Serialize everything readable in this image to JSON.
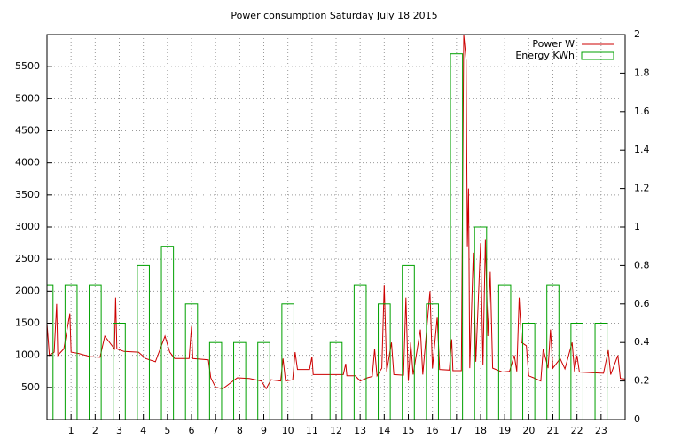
{
  "chart_data": {
    "type": "line-bar",
    "title": "Power consumption Saturday July 18 2015",
    "xlim": [
      0,
      24
    ],
    "xticks": [
      1,
      2,
      3,
      4,
      5,
      6,
      7,
      8,
      9,
      10,
      11,
      12,
      13,
      14,
      15,
      16,
      17,
      18,
      19,
      20,
      21,
      22,
      23
    ],
    "ylim": [
      0,
      6000
    ],
    "yticks": [
      500,
      1000,
      1500,
      2000,
      2500,
      3000,
      3500,
      4000,
      4500,
      5000,
      5500
    ],
    "y2lim": [
      0,
      2
    ],
    "y2ticks": [
      0,
      0.2,
      0.4,
      0.6,
      0.8,
      1,
      1.2,
      1.4,
      1.6,
      1.8,
      2
    ],
    "grid": true,
    "legend": "top-right",
    "series": [
      {
        "name": "Power W",
        "color": "#cc0000",
        "kind": "line",
        "x": [
          0,
          0.1,
          0.3,
          0.4,
          0.45,
          0.7,
          0.95,
          1,
          1.3,
          1.8,
          2.2,
          2.4,
          2.8,
          2.85,
          2.9,
          3.2,
          3.8,
          4.1,
          4.5,
          4.9,
          5.1,
          5.3,
          5.9,
          6,
          6.05,
          6.7,
          6.8,
          7,
          7.3,
          7.9,
          8.4,
          8.9,
          9.1,
          9.3,
          9.7,
          9.8,
          9.9,
          10.2,
          10.3,
          10.4,
          10.9,
          11,
          11.05,
          11.7,
          12.3,
          12.4,
          12.45,
          12.8,
          13,
          13.3,
          13.5,
          13.6,
          13.7,
          13.9,
          14,
          14.1,
          14.3,
          14.4,
          14.8,
          14.9,
          15,
          15.1,
          15.2,
          15.5,
          15.6,
          15.9,
          16,
          16.2,
          16.3,
          16.7,
          16.8,
          16.85,
          17.2,
          17.3,
          17.4,
          17.45,
          17.5,
          17.55,
          17.7,
          17.8,
          18,
          18.1,
          18.2,
          18.3,
          18.4,
          18.5,
          18.9,
          19.2,
          19.4,
          19.5,
          19.6,
          19.7,
          19.9,
          20,
          20.2,
          20.5,
          20.6,
          20.8,
          20.9,
          21,
          21.3,
          21.5,
          21.8,
          21.9,
          22,
          22.1,
          22.6,
          23.1,
          23.3,
          23.4,
          23.7,
          23.8,
          24
        ],
        "values": [
          1500,
          1000,
          1050,
          1800,
          1000,
          1100,
          1650,
          1050,
          1030,
          980,
          970,
          1300,
          1100,
          1900,
          1100,
          1060,
          1050,
          950,
          900,
          1300,
          1050,
          950,
          950,
          1450,
          950,
          930,
          650,
          500,
          480,
          650,
          640,
          600,
          480,
          620,
          600,
          950,
          600,
          620,
          1050,
          780,
          780,
          980,
          700,
          700,
          700,
          870,
          680,
          680,
          600,
          650,
          670,
          1100,
          680,
          800,
          2100,
          750,
          1200,
          700,
          690,
          1900,
          600,
          1200,
          700,
          1400,
          700,
          2000,
          800,
          1600,
          780,
          770,
          1250,
          760,
          760,
          6000,
          5600,
          2700,
          3600,
          800,
          2600,
          900,
          2750,
          850,
          2800,
          1300,
          2300,
          800,
          740,
          750,
          1000,
          750,
          1900,
          1200,
          1150,
          680,
          650,
          600,
          1100,
          800,
          1400,
          800,
          950,
          790,
          1200,
          750,
          1000,
          740,
          730,
          720,
          1080,
          700,
          1000,
          640,
          630
        ]
      },
      {
        "name": "Energy KWh",
        "color": "#00a000",
        "kind": "bar",
        "axis": "y2",
        "x": [
          0,
          1,
          2,
          3,
          4,
          5,
          6,
          7,
          8,
          9,
          10,
          11,
          12,
          13,
          14,
          15,
          16,
          17,
          18,
          19,
          20,
          21,
          22,
          23
        ],
        "values": [
          0.7,
          0.7,
          0.7,
          0.5,
          0.8,
          0.9,
          0.6,
          0.4,
          0.4,
          0.4,
          0.6,
          0,
          0.4,
          0.7,
          0.6,
          0.8,
          0.6,
          1.9,
          1.0,
          0.7,
          0.5,
          0.7,
          0.5,
          0.5
        ]
      }
    ]
  }
}
